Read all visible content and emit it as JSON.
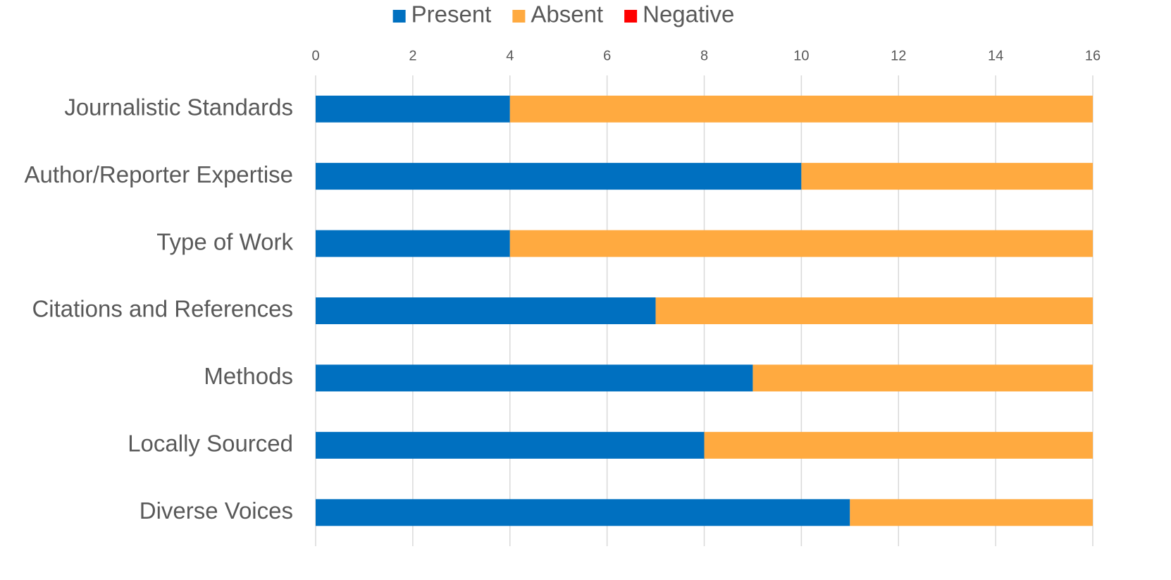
{
  "chart_data": {
    "type": "stacked-bar-horizontal",
    "categories": [
      "Journalistic Standards",
      "Author/Reporter Expertise",
      "Type of Work",
      "Citations and References",
      "Methods",
      "Locally Sourced",
      "Diverse Voices"
    ],
    "series": [
      {
        "name": "Present",
        "color": "#0070c0",
        "values": [
          4,
          10,
          4,
          7,
          9,
          8,
          11
        ]
      },
      {
        "name": "Absent",
        "color": "#ffaa40",
        "values": [
          12,
          6,
          12,
          9,
          7,
          8,
          5
        ]
      },
      {
        "name": "Negative",
        "color": "#ff0000",
        "values": [
          0,
          0,
          0,
          0,
          0,
          0,
          0
        ]
      }
    ],
    "xlim": [
      0,
      16
    ],
    "xticks": [
      0,
      2,
      4,
      6,
      8,
      10,
      12,
      14,
      16
    ],
    "grid": true,
    "legend": "top"
  }
}
